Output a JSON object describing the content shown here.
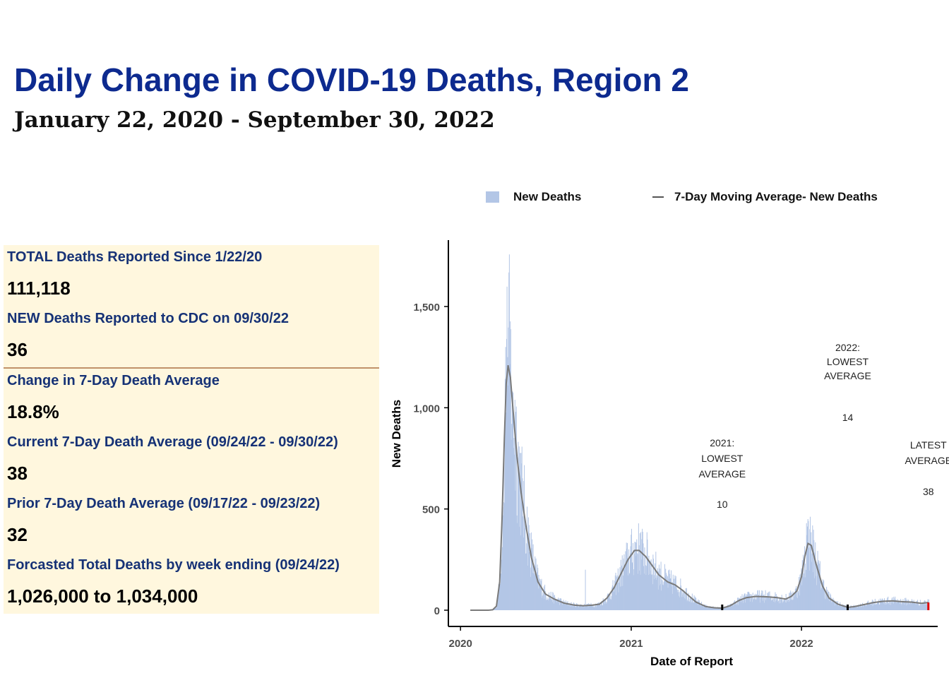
{
  "header": {
    "title": "Daily Change in COVID-19 Deaths, Region 2",
    "subtitle": "January 22, 2020 - September 30, 2022"
  },
  "stats_panel": {
    "items": [
      {
        "label": "TOTAL Deaths Reported Since 1/22/20",
        "value": "111,118"
      },
      {
        "label": "NEW Deaths Reported to CDC on 09/30/22",
        "value": "36"
      },
      {
        "label": "Change in 7-Day Death Average",
        "value": "18.8%"
      },
      {
        "label": "Current 7-Day Death Average (09/24/22 - 09/30/22)",
        "value": "38"
      },
      {
        "label": "Prior 7-Day Death Average (09/17/22 - 09/23/22)",
        "value": "32"
      },
      {
        "label": "Forcasted Total Deaths by week ending (09/24/22)",
        "value": "1,026,000 to 1,034,000"
      }
    ],
    "background_color": "#fff7de",
    "label_color": "#163276",
    "divider_color": "#c0916a"
  },
  "chart_data": {
    "type": "bar",
    "title": "",
    "xlabel": "Date of Report",
    "ylabel": "New Deaths",
    "x_ticks": [
      "2020",
      "2021",
      "2022"
    ],
    "y_ticks": [
      "0",
      "500",
      "1,000",
      "1,500"
    ],
    "ylim": [
      0,
      1800
    ],
    "xlim": [
      "2019-12-06",
      "2022-10-20"
    ],
    "x_range": [
      "2020-01-22",
      "2022-09-30"
    ],
    "legend": {
      "position": "top",
      "items": [
        {
          "label": "New Deaths",
          "kind": "bar",
          "color": "#b3c6e6"
        },
        {
          "label": "7-Day Moving Average- New Deaths",
          "kind": "line",
          "color": "#7a7a7a"
        }
      ]
    },
    "series": [
      {
        "name": "7-Day Moving Average- New Deaths",
        "kind": "line",
        "color": "#7a7a7a",
        "points": [
          [
            "2020-01-22",
            0
          ],
          [
            "2020-03-01",
            0
          ],
          [
            "2020-03-10",
            2
          ],
          [
            "2020-03-18",
            20
          ],
          [
            "2020-03-25",
            140
          ],
          [
            "2020-03-30",
            450
          ],
          [
            "2020-04-04",
            850
          ],
          [
            "2020-04-08",
            1120
          ],
          [
            "2020-04-12",
            1210
          ],
          [
            "2020-04-17",
            1150
          ],
          [
            "2020-04-24",
            950
          ],
          [
            "2020-05-01",
            760
          ],
          [
            "2020-05-10",
            580
          ],
          [
            "2020-05-20",
            420
          ],
          [
            "2020-06-01",
            260
          ],
          [
            "2020-06-15",
            140
          ],
          [
            "2020-07-01",
            80
          ],
          [
            "2020-07-20",
            55
          ],
          [
            "2020-08-10",
            35
          ],
          [
            "2020-09-01",
            25
          ],
          [
            "2020-09-20",
            22
          ],
          [
            "2020-10-10",
            25
          ],
          [
            "2020-10-25",
            30
          ],
          [
            "2020-11-10",
            60
          ],
          [
            "2020-11-25",
            110
          ],
          [
            "2020-12-10",
            180
          ],
          [
            "2020-12-25",
            250
          ],
          [
            "2021-01-08",
            295
          ],
          [
            "2021-01-18",
            295
          ],
          [
            "2021-02-01",
            265
          ],
          [
            "2021-02-15",
            220
          ],
          [
            "2021-03-01",
            175
          ],
          [
            "2021-03-20",
            140
          ],
          [
            "2021-04-05",
            125
          ],
          [
            "2021-04-20",
            100
          ],
          [
            "2021-05-05",
            70
          ],
          [
            "2021-05-20",
            40
          ],
          [
            "2021-06-10",
            18
          ],
          [
            "2021-06-28",
            12
          ],
          [
            "2021-07-15",
            10
          ],
          [
            "2021-08-01",
            22
          ],
          [
            "2021-08-20",
            48
          ],
          [
            "2021-09-05",
            62
          ],
          [
            "2021-09-25",
            68
          ],
          [
            "2021-10-20",
            66
          ],
          [
            "2021-11-10",
            62
          ],
          [
            "2021-11-28",
            55
          ],
          [
            "2021-12-10",
            68
          ],
          [
            "2021-12-22",
            95
          ],
          [
            "2022-01-01",
            165
          ],
          [
            "2022-01-08",
            265
          ],
          [
            "2022-01-15",
            330
          ],
          [
            "2022-01-22",
            320
          ],
          [
            "2022-02-01",
            230
          ],
          [
            "2022-02-15",
            120
          ],
          [
            "2022-03-01",
            60
          ],
          [
            "2022-03-20",
            30
          ],
          [
            "2022-04-10",
            14
          ],
          [
            "2022-04-25",
            18
          ],
          [
            "2022-05-15",
            28
          ],
          [
            "2022-06-05",
            38
          ],
          [
            "2022-06-25",
            44
          ],
          [
            "2022-07-15",
            46
          ],
          [
            "2022-08-05",
            42
          ],
          [
            "2022-08-25",
            40
          ],
          [
            "2022-09-15",
            34
          ],
          [
            "2022-09-30",
            38
          ]
        ]
      },
      {
        "name": "New Deaths",
        "kind": "bar",
        "color": "#b3c6e6",
        "spikes": [
          [
            "2020-04-06",
            1300
          ],
          [
            "2020-04-08",
            1340
          ],
          [
            "2020-04-10",
            1250
          ],
          [
            "2020-04-21",
            1080
          ],
          [
            "2020-04-28",
            980
          ],
          [
            "2020-09-24",
            200
          ],
          [
            "2021-01-12",
            350
          ],
          [
            "2021-01-19",
            380
          ],
          [
            "2021-01-26",
            330
          ],
          [
            "2022-01-11",
            430
          ],
          [
            "2022-01-14",
            450
          ],
          [
            "2022-01-18",
            400
          ]
        ]
      }
    ],
    "annotations": [
      {
        "label_lines": [
          "2021:",
          "LOWEST",
          "AVERAGE"
        ],
        "value": "10",
        "date": "2021-07-15"
      },
      {
        "label_lines": [
          "2022:",
          "LOWEST",
          "AVERAGE"
        ],
        "value": "14",
        "date": "2022-04-10"
      },
      {
        "label_lines": [
          "LATEST",
          "AVERAGE"
        ],
        "value": "38",
        "date": "2022-09-30"
      }
    ]
  }
}
